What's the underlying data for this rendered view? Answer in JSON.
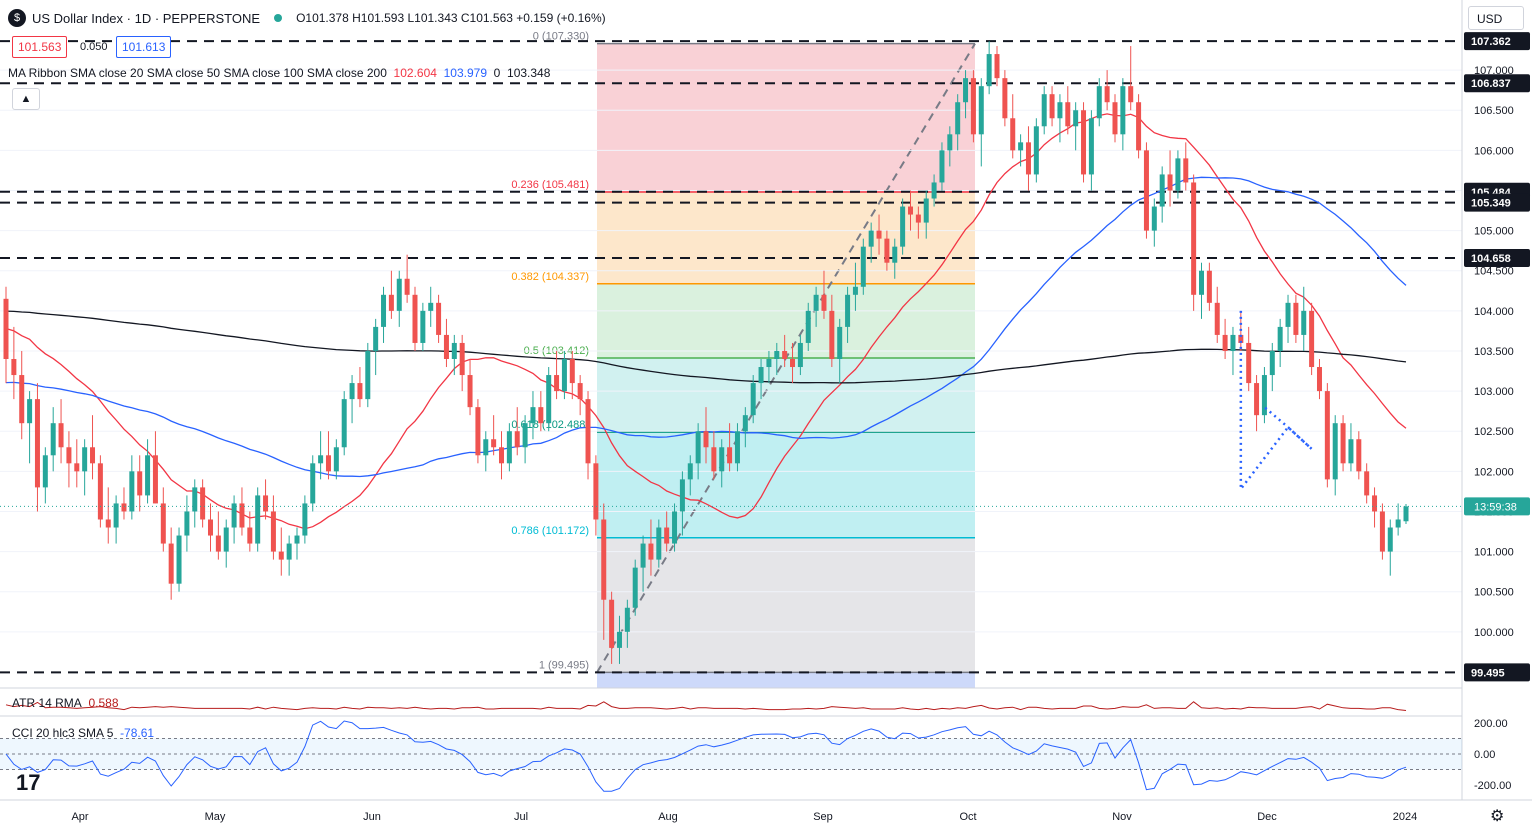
{
  "header": {
    "symbol_title": "US Dollar Index · 1D · PEPPERSTONE",
    "ohlc": "O101.378 H101.593 L101.343 C101.563 +0.159 (+0.16%)",
    "bid": "101.563",
    "spread": "0.050",
    "ask": "101.613",
    "currency": "USD",
    "collapse_icon": "chevron-up-icon"
  },
  "ma_legend": {
    "label": "MA Ribbon SMA close 20 SMA close 50 SMA close 100 SMA close 200",
    "v20": "102.604",
    "v50": "103.979",
    "v100": "0",
    "v200": "103.348"
  },
  "colors": {
    "up": "#26a69a",
    "down": "#ef5350",
    "sma20": "#f23645",
    "sma50": "#2962ff",
    "sma200": "#131722",
    "fib_red": "#f8c9cf",
    "fib_orange": "#fde3c2",
    "fib_green": "#d4eed8",
    "fib_teal": "#c9efed",
    "fib_cyan": "#b5ecf0",
    "fib_gray": "#e1e1e4",
    "fib_blue": "#c8d5fa"
  },
  "chart_data": {
    "type": "candlestick",
    "title": "US Dollar Index · 1D · PEPPERSTONE",
    "ylim": [
      99.3,
      107.5
    ],
    "price_axis_ticks": [
      "107.000",
      "106.500",
      "106.000",
      "105.500",
      "105.000",
      "104.500",
      "104.000",
      "103.500",
      "103.000",
      "102.500",
      "102.000",
      "101.500",
      "101.000",
      "100.500",
      "100.000"
    ],
    "time_axis_ticks": [
      "Apr",
      "May",
      "Jun",
      "Jul",
      "Aug",
      "Sep",
      "Oct",
      "Nov",
      "Dec",
      "2024"
    ],
    "last_price": 101.563,
    "countdown": "13:59:38",
    "horizontal_levels": [
      107.362,
      106.837,
      105.484,
      105.349,
      104.658,
      99.495
    ],
    "level_labels": [
      "107.362",
      "106.837",
      "105.484",
      "105.349",
      "104.658",
      "99.495"
    ],
    "fib_levels": [
      {
        "label": "0 (107.330)",
        "value": 107.33
      },
      {
        "label": "0.236 (105.481)",
        "value": 105.481
      },
      {
        "label": "0.382 (104.337)",
        "value": 104.337
      },
      {
        "label": "0.5 (103.412)",
        "value": 103.412
      },
      {
        "label": "0.618 (102.488)",
        "value": 102.488
      },
      {
        "label": "0.786 (101.172)",
        "value": 101.172
      },
      {
        "label": "1 (99.495)",
        "value": 99.495
      }
    ],
    "candles": [
      [
        104.15,
        104.3,
        103.1,
        103.4
      ],
      [
        103.4,
        103.8,
        102.9,
        103.2
      ],
      [
        103.2,
        103.5,
        102.4,
        102.6
      ],
      [
        102.6,
        103.0,
        102.1,
        102.9
      ],
      [
        102.9,
        103.1,
        101.5,
        101.8
      ],
      [
        101.8,
        102.3,
        101.6,
        102.2
      ],
      [
        102.2,
        102.8,
        102.0,
        102.6
      ],
      [
        102.6,
        102.9,
        102.1,
        102.3
      ],
      [
        102.3,
        102.5,
        101.8,
        102.1
      ],
      [
        102.1,
        102.4,
        101.8,
        102.0
      ],
      [
        102.0,
        102.4,
        101.7,
        102.3
      ],
      [
        102.3,
        102.7,
        101.9,
        102.1
      ],
      [
        102.1,
        102.2,
        101.3,
        101.4
      ],
      [
        101.4,
        101.8,
        101.1,
        101.3
      ],
      [
        101.3,
        101.7,
        101.1,
        101.6
      ],
      [
        101.6,
        101.8,
        101.4,
        101.5
      ],
      [
        101.5,
        102.2,
        101.4,
        102.0
      ],
      [
        102.0,
        102.2,
        101.5,
        101.7
      ],
      [
        101.7,
        102.4,
        101.6,
        102.2
      ],
      [
        102.2,
        102.5,
        101.6,
        101.6
      ],
      [
        101.6,
        101.8,
        101.0,
        101.1
      ],
      [
        101.1,
        101.3,
        100.4,
        100.6
      ],
      [
        100.6,
        101.3,
        100.5,
        101.2
      ],
      [
        101.2,
        101.7,
        101.0,
        101.5
      ],
      [
        101.5,
        101.9,
        101.3,
        101.8
      ],
      [
        101.8,
        101.9,
        101.3,
        101.4
      ],
      [
        101.4,
        101.6,
        101.0,
        101.2
      ],
      [
        101.2,
        101.5,
        100.9,
        101.0
      ],
      [
        101.0,
        101.4,
        100.8,
        101.3
      ],
      [
        101.3,
        101.7,
        101.1,
        101.6
      ],
      [
        101.6,
        101.8,
        101.2,
        101.3
      ],
      [
        101.3,
        101.5,
        101.0,
        101.1
      ],
      [
        101.1,
        101.8,
        101.0,
        101.7
      ],
      [
        101.7,
        101.9,
        101.4,
        101.5
      ],
      [
        101.5,
        101.7,
        100.9,
        101.0
      ],
      [
        101.0,
        101.3,
        100.7,
        100.9
      ],
      [
        100.9,
        101.2,
        100.7,
        101.1
      ],
      [
        101.1,
        101.3,
        100.9,
        101.2
      ],
      [
        101.2,
        101.7,
        101.1,
        101.6
      ],
      [
        101.6,
        102.2,
        101.5,
        102.1
      ],
      [
        102.1,
        102.5,
        101.9,
        102.2
      ],
      [
        102.2,
        102.5,
        101.9,
        102.0
      ],
      [
        102.0,
        102.4,
        101.9,
        102.3
      ],
      [
        102.3,
        103.0,
        102.2,
        102.9
      ],
      [
        102.9,
        103.2,
        102.6,
        103.1
      ],
      [
        103.1,
        103.3,
        102.8,
        102.9
      ],
      [
        102.9,
        103.6,
        102.8,
        103.5
      ],
      [
        103.5,
        103.9,
        103.2,
        103.8
      ],
      [
        103.8,
        104.3,
        103.6,
        104.2
      ],
      [
        104.2,
        104.5,
        103.9,
        104.0
      ],
      [
        104.0,
        104.5,
        103.8,
        104.4
      ],
      [
        104.4,
        104.7,
        104.1,
        104.2
      ],
      [
        104.2,
        104.3,
        103.5,
        103.6
      ],
      [
        103.6,
        104.1,
        103.5,
        104.0
      ],
      [
        104.0,
        104.3,
        103.8,
        104.1
      ],
      [
        104.1,
        104.2,
        103.6,
        103.7
      ],
      [
        103.7,
        103.9,
        103.3,
        103.4
      ],
      [
        103.4,
        103.7,
        103.2,
        103.6
      ],
      [
        103.6,
        103.7,
        103.0,
        103.2
      ],
      [
        103.2,
        103.4,
        102.7,
        102.8
      ],
      [
        102.8,
        102.9,
        102.1,
        102.2
      ],
      [
        102.2,
        102.5,
        102.0,
        102.4
      ],
      [
        102.4,
        102.7,
        102.2,
        102.3
      ],
      [
        102.3,
        102.5,
        101.9,
        102.1
      ],
      [
        102.1,
        102.6,
        102.0,
        102.5
      ],
      [
        102.5,
        102.8,
        102.2,
        102.3
      ],
      [
        102.3,
        102.7,
        102.1,
        102.6
      ],
      [
        102.6,
        103.0,
        102.4,
        102.8
      ],
      [
        102.8,
        103.0,
        102.5,
        102.6
      ],
      [
        102.6,
        103.3,
        102.5,
        103.2
      ],
      [
        103.2,
        103.5,
        102.9,
        103.0
      ],
      [
        103.0,
        103.5,
        102.9,
        103.4
      ],
      [
        103.4,
        103.5,
        102.9,
        103.1
      ],
      [
        103.1,
        103.2,
        102.7,
        102.9
      ],
      [
        102.9,
        103.0,
        101.9,
        102.1
      ],
      [
        102.1,
        102.2,
        101.2,
        101.4
      ],
      [
        101.4,
        101.6,
        99.9,
        100.4
      ],
      [
        100.4,
        100.5,
        99.6,
        99.8
      ],
      [
        99.8,
        100.2,
        99.6,
        100.0
      ],
      [
        100.0,
        100.4,
        99.8,
        100.3
      ],
      [
        100.3,
        100.9,
        100.2,
        100.8
      ],
      [
        100.8,
        101.2,
        100.5,
        101.1
      ],
      [
        101.1,
        101.4,
        100.7,
        100.9
      ],
      [
        100.9,
        101.4,
        100.8,
        101.3
      ],
      [
        101.3,
        101.5,
        101.0,
        101.1
      ],
      [
        101.1,
        101.6,
        101.0,
        101.5
      ],
      [
        101.5,
        102.0,
        101.2,
        101.9
      ],
      [
        101.9,
        102.2,
        101.7,
        102.1
      ],
      [
        102.1,
        102.6,
        101.9,
        102.5
      ],
      [
        102.5,
        102.8,
        102.1,
        102.3
      ],
      [
        102.3,
        102.5,
        101.9,
        102.0
      ],
      [
        102.0,
        102.4,
        101.8,
        102.3
      ],
      [
        102.3,
        102.6,
        102.0,
        102.1
      ],
      [
        102.1,
        102.6,
        102.0,
        102.5
      ],
      [
        102.5,
        102.8,
        102.3,
        102.7
      ],
      [
        102.7,
        103.2,
        102.6,
        103.1
      ],
      [
        103.1,
        103.4,
        102.9,
        103.3
      ],
      [
        103.3,
        103.5,
        103.1,
        103.4
      ],
      [
        103.4,
        103.6,
        103.2,
        103.5
      ],
      [
        103.5,
        103.7,
        103.3,
        103.4
      ],
      [
        103.4,
        103.6,
        103.1,
        103.3
      ],
      [
        103.3,
        103.7,
        103.2,
        103.6
      ],
      [
        103.6,
        104.1,
        103.5,
        104.0
      ],
      [
        104.0,
        104.3,
        103.8,
        104.2
      ],
      [
        104.2,
        104.5,
        103.9,
        104.0
      ],
      [
        104.0,
        104.2,
        103.3,
        103.4
      ],
      [
        103.4,
        103.9,
        103.1,
        103.8
      ],
      [
        103.8,
        104.3,
        103.6,
        104.2
      ],
      [
        104.2,
        104.6,
        104.0,
        104.3
      ],
      [
        104.3,
        104.9,
        104.2,
        104.8
      ],
      [
        104.8,
        105.1,
        104.6,
        105.0
      ],
      [
        105.0,
        105.2,
        104.7,
        104.9
      ],
      [
        104.9,
        105.0,
        104.5,
        104.6
      ],
      [
        104.6,
        104.9,
        104.4,
        104.8
      ],
      [
        104.8,
        105.4,
        104.7,
        105.3
      ],
      [
        105.3,
        105.5,
        105.0,
        105.2
      ],
      [
        105.2,
        105.3,
        104.9,
        105.1
      ],
      [
        105.1,
        105.5,
        104.9,
        105.4
      ],
      [
        105.4,
        105.7,
        105.3,
        105.6
      ],
      [
        105.6,
        106.1,
        105.5,
        106.0
      ],
      [
        106.0,
        106.3,
        105.8,
        106.2
      ],
      [
        106.2,
        106.7,
        106.0,
        106.6
      ],
      [
        106.6,
        107.0,
        106.4,
        106.9
      ],
      [
        106.9,
        107.0,
        106.1,
        106.2
      ],
      [
        106.2,
        106.9,
        105.8,
        106.8
      ],
      [
        106.8,
        107.36,
        106.7,
        107.2
      ],
      [
        107.2,
        107.3,
        106.8,
        106.9
      ],
      [
        106.9,
        107.0,
        106.3,
        106.4
      ],
      [
        106.4,
        106.7,
        105.9,
        106.0
      ],
      [
        106.0,
        106.2,
        105.8,
        106.1
      ],
      [
        106.1,
        106.3,
        105.5,
        105.7
      ],
      [
        105.7,
        106.4,
        105.6,
        106.3
      ],
      [
        106.3,
        106.8,
        106.2,
        106.7
      ],
      [
        106.7,
        106.8,
        106.3,
        106.4
      ],
      [
        106.4,
        106.7,
        106.1,
        106.6
      ],
      [
        106.6,
        106.8,
        106.2,
        106.3
      ],
      [
        106.3,
        106.6,
        106.0,
        106.5
      ],
      [
        106.5,
        106.6,
        105.6,
        105.7
      ],
      [
        105.7,
        106.5,
        105.5,
        106.4
      ],
      [
        106.4,
        106.9,
        106.3,
        106.8
      ],
      [
        106.8,
        107.0,
        106.5,
        106.6
      ],
      [
        106.6,
        106.7,
        106.1,
        106.2
      ],
      [
        106.2,
        106.9,
        106.0,
        106.8
      ],
      [
        106.8,
        107.3,
        106.5,
        106.6
      ],
      [
        106.6,
        106.7,
        105.9,
        106.0
      ],
      [
        106.0,
        106.1,
        104.9,
        105.0
      ],
      [
        105.0,
        105.4,
        104.8,
        105.3
      ],
      [
        105.3,
        105.8,
        105.1,
        105.7
      ],
      [
        105.7,
        106.0,
        105.3,
        105.5
      ],
      [
        105.5,
        106.0,
        105.4,
        105.9
      ],
      [
        105.9,
        106.1,
        105.5,
        105.6
      ],
      [
        105.6,
        105.7,
        104.0,
        104.2
      ],
      [
        104.2,
        104.6,
        103.9,
        104.5
      ],
      [
        104.5,
        104.6,
        104.0,
        104.1
      ],
      [
        104.1,
        104.3,
        103.6,
        103.7
      ],
      [
        103.7,
        103.9,
        103.4,
        103.5
      ],
      [
        103.5,
        103.8,
        103.2,
        103.7
      ],
      [
        103.7,
        104.0,
        103.5,
        103.6
      ],
      [
        103.6,
        103.8,
        103.0,
        103.1
      ],
      [
        103.1,
        103.2,
        102.5,
        102.7
      ],
      [
        102.7,
        103.3,
        102.6,
        103.2
      ],
      [
        103.2,
        103.6,
        103.0,
        103.5
      ],
      [
        103.5,
        103.9,
        103.3,
        103.8
      ],
      [
        103.8,
        104.2,
        103.6,
        104.1
      ],
      [
        104.1,
        104.2,
        103.6,
        103.7
      ],
      [
        103.7,
        104.3,
        103.5,
        104.0
      ],
      [
        104.0,
        104.1,
        103.2,
        103.3
      ],
      [
        103.3,
        103.4,
        102.9,
        103.0
      ],
      [
        103.0,
        103.1,
        101.8,
        101.9
      ],
      [
        101.9,
        102.7,
        101.7,
        102.6
      ],
      [
        102.6,
        102.7,
        102.0,
        102.1
      ],
      [
        102.1,
        102.6,
        102.0,
        102.4
      ],
      [
        102.4,
        102.5,
        101.9,
        102.0
      ],
      [
        102.0,
        102.1,
        101.6,
        101.7
      ],
      [
        101.7,
        101.8,
        101.3,
        101.5
      ],
      [
        101.5,
        101.6,
        100.9,
        101.0
      ],
      [
        101.0,
        101.4,
        100.7,
        101.3
      ],
      [
        101.3,
        101.6,
        101.2,
        101.4
      ],
      [
        101.378,
        101.593,
        101.343,
        101.563
      ]
    ],
    "atr": {
      "label": "ATR 14 RMA",
      "value": "0.588"
    },
    "cci": {
      "label": "CCI 20 hlc3 SMA 5",
      "value": "-78.61",
      "ticks": [
        "200.00",
        "0.00",
        "-200.00"
      ],
      "band": [
        -100,
        100
      ]
    }
  }
}
